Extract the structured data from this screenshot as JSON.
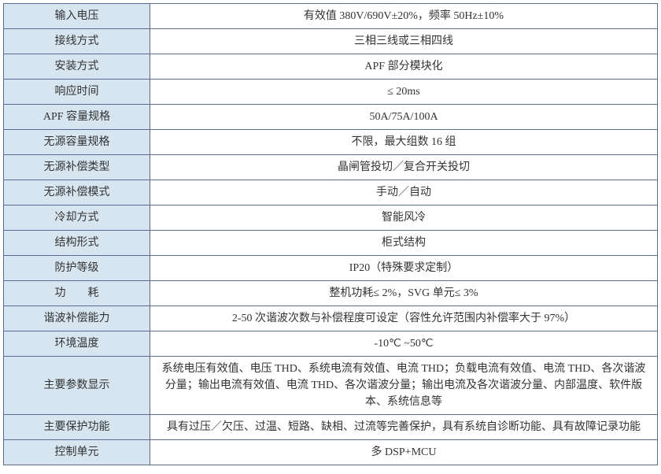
{
  "table": {
    "label_bg": "#d6e5f0",
    "value_bg": "#ffffff",
    "border_color": "#5b6b8f",
    "text_color": "#333333",
    "font_size": 14,
    "label_col_width": 186,
    "rows": [
      {
        "label": "输入电压",
        "value": "有效值 380V/690V±20%，频率 50Hz±10%"
      },
      {
        "label": "接线方式",
        "value": "三相三线或三相四线"
      },
      {
        "label": "安装方式",
        "value": "APF 部分模块化"
      },
      {
        "label": "响应时间",
        "value": "≤ 20ms"
      },
      {
        "label": "APF 容量规格",
        "value": "50A/75A/100A"
      },
      {
        "label": "无源容量规格",
        "value": "不限，最大组数 16 组"
      },
      {
        "label": "无源补偿类型",
        "value": "晶闸管投切／复合开关投切"
      },
      {
        "label": "无源补偿模式",
        "value": "手动／自动"
      },
      {
        "label": "冷却方式",
        "value": "智能风冷"
      },
      {
        "label": "结构形式",
        "value": "柜式结构"
      },
      {
        "label": "防护等级",
        "value": "IP20（特殊要求定制）"
      },
      {
        "label": "功　　耗",
        "value": "整机功耗≤ 2%，SVG 单元≤ 3%"
      },
      {
        "label": "谐波补偿能力",
        "value": "2-50 次谐波次数与补偿程度可设定（容性允许范围内补偿率大于 97%）"
      },
      {
        "label": "环境温度",
        "value": "-10℃ ~50℃"
      },
      {
        "label": "主要参数显示",
        "value": "系统电压有效值、电压 THD、系统电流有效值、电流 THD；负载电流有效值、电流 THD、各次谐波分量；输出电流有效值、电流 THD、各次谐波分量；输出电流及各次谐波分量、内部温度、软件版本、系统信息等"
      },
      {
        "label": "主要保护功能",
        "value": "具有过压／欠压、过温、短路、缺相、过流等完善保护，具有系统自诊断功能、具有故障记录功能"
      },
      {
        "label": "控制单元",
        "value": "多 DSP+MCU"
      }
    ]
  }
}
